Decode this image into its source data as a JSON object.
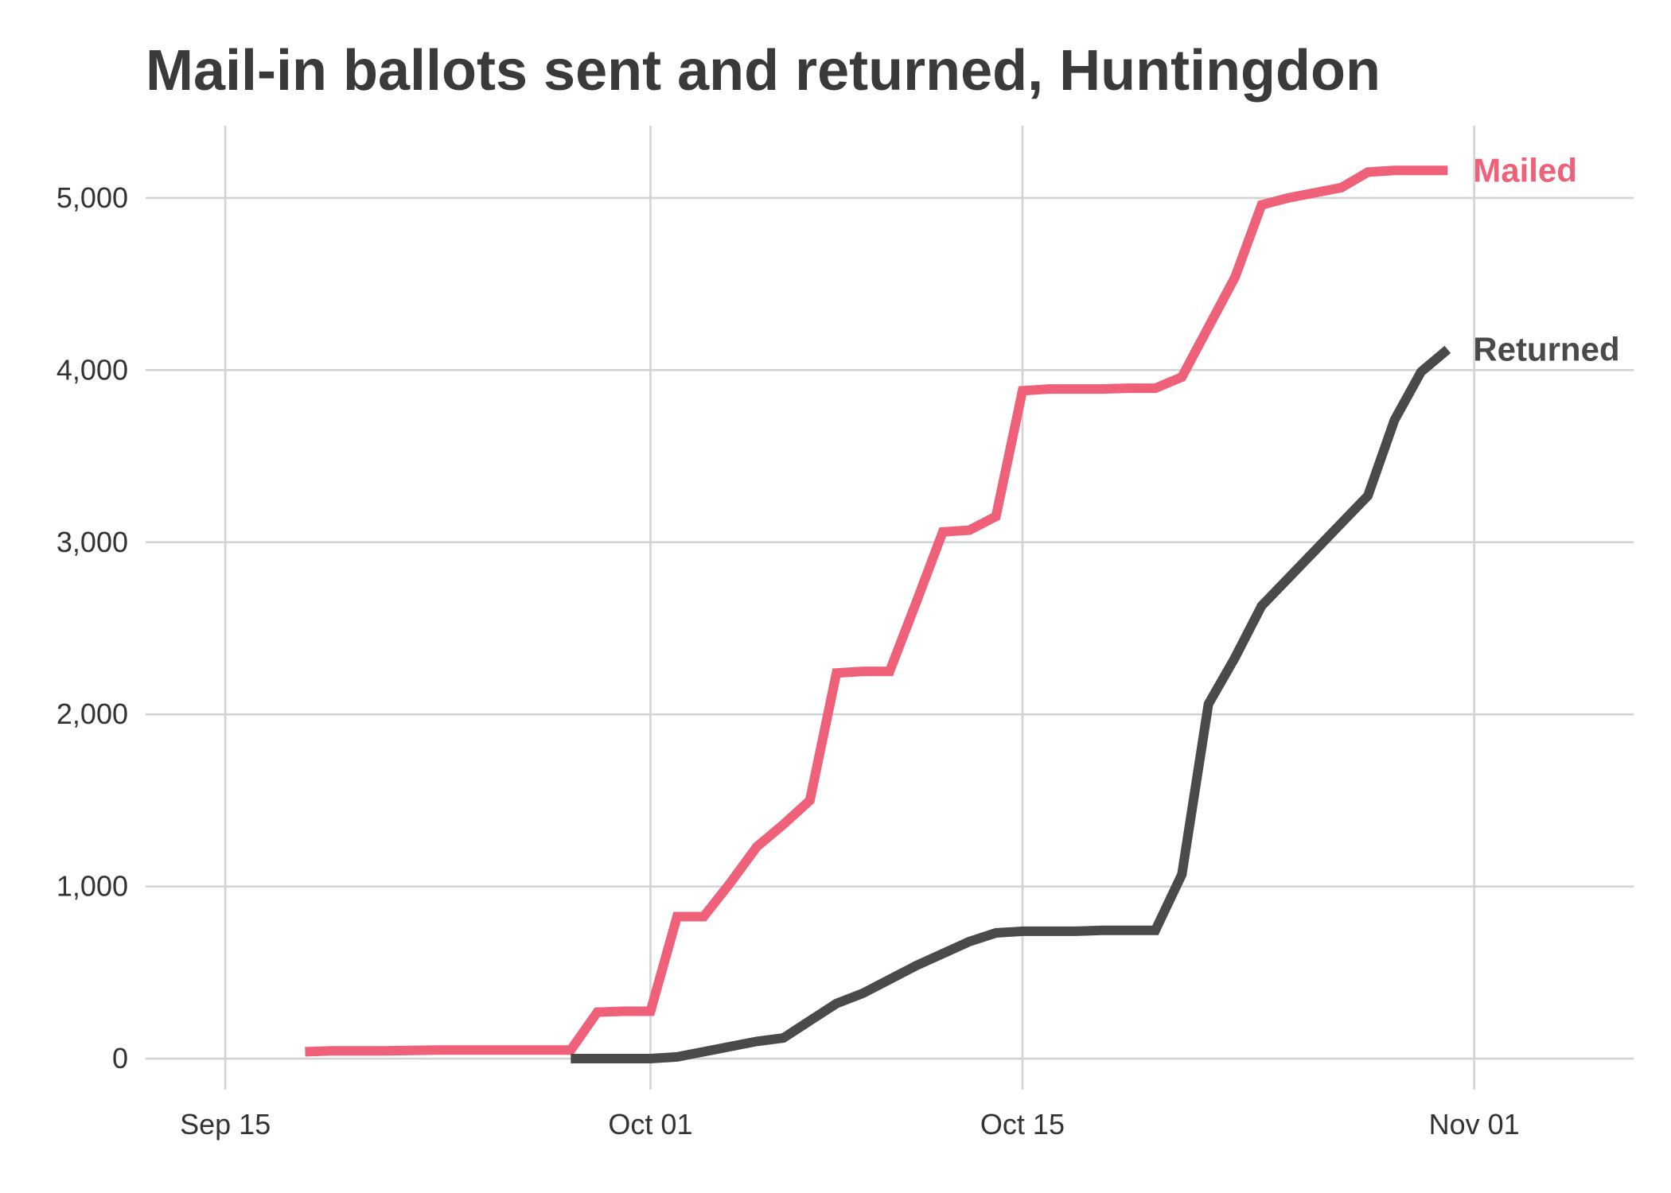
{
  "chart_data": {
    "type": "line",
    "title": "Mail-in ballots sent and returned, Huntingdon",
    "xlabel": "",
    "ylabel": "",
    "x_ticks": [
      "Sep 15",
      "Oct 01",
      "Oct 15",
      "Nov 01"
    ],
    "y_ticks": [
      "0",
      "1,000",
      "2,000",
      "3,000",
      "4,000",
      "5,000"
    ],
    "xlim": [
      "2020-09-12",
      "2020-11-07"
    ],
    "ylim": [
      -180,
      5420
    ],
    "grid": true,
    "legend": "direct labels at line ends",
    "series": [
      {
        "name": "Mailed",
        "color": "#EF6079",
        "label": "Mailed",
        "points": [
          [
            "2020-09-18",
            40
          ],
          [
            "2020-09-19",
            45
          ],
          [
            "2020-09-20",
            45
          ],
          [
            "2020-09-21",
            45
          ],
          [
            "2020-09-22",
            48
          ],
          [
            "2020-09-23",
            50
          ],
          [
            "2020-09-24",
            50
          ],
          [
            "2020-09-25",
            50
          ],
          [
            "2020-09-26",
            50
          ],
          [
            "2020-09-27",
            50
          ],
          [
            "2020-09-28",
            50
          ],
          [
            "2020-09-29",
            270
          ],
          [
            "2020-09-30",
            275
          ],
          [
            "2020-10-01",
            275
          ],
          [
            "2020-10-02",
            825
          ],
          [
            "2020-10-03",
            825
          ],
          [
            "2020-10-04",
            1020
          ],
          [
            "2020-10-05",
            1230
          ],
          [
            "2020-10-06",
            1360
          ],
          [
            "2020-10-07",
            1500
          ],
          [
            "2020-10-08",
            2240
          ],
          [
            "2020-10-09",
            2250
          ],
          [
            "2020-10-10",
            2250
          ],
          [
            "2020-10-11",
            2650
          ],
          [
            "2020-10-12",
            3060
          ],
          [
            "2020-10-13",
            3070
          ],
          [
            "2020-10-14",
            3150
          ],
          [
            "2020-10-15",
            3880
          ],
          [
            "2020-10-16",
            3890
          ],
          [
            "2020-10-17",
            3890
          ],
          [
            "2020-10-18",
            3890
          ],
          [
            "2020-10-19",
            3895
          ],
          [
            "2020-10-20",
            3895
          ],
          [
            "2020-10-21",
            3960
          ],
          [
            "2020-10-22",
            4250
          ],
          [
            "2020-10-23",
            4540
          ],
          [
            "2020-10-24",
            4960
          ],
          [
            "2020-10-25",
            5000
          ],
          [
            "2020-10-26",
            5030
          ],
          [
            "2020-10-27",
            5060
          ],
          [
            "2020-10-28",
            5150
          ],
          [
            "2020-10-29",
            5160
          ],
          [
            "2020-10-30",
            5160
          ],
          [
            "2020-10-31",
            5160
          ]
        ]
      },
      {
        "name": "Returned",
        "color": "#4A4A4A",
        "label": "Returned",
        "points": [
          [
            "2020-09-28",
            0
          ],
          [
            "2020-09-29",
            0
          ],
          [
            "2020-09-30",
            0
          ],
          [
            "2020-10-01",
            0
          ],
          [
            "2020-10-02",
            10
          ],
          [
            "2020-10-03",
            40
          ],
          [
            "2020-10-04",
            70
          ],
          [
            "2020-10-05",
            100
          ],
          [
            "2020-10-06",
            120
          ],
          [
            "2020-10-07",
            220
          ],
          [
            "2020-10-08",
            320
          ],
          [
            "2020-10-09",
            380
          ],
          [
            "2020-10-10",
            460
          ],
          [
            "2020-10-11",
            540
          ],
          [
            "2020-10-12",
            610
          ],
          [
            "2020-10-13",
            680
          ],
          [
            "2020-10-14",
            730
          ],
          [
            "2020-10-15",
            740
          ],
          [
            "2020-10-16",
            740
          ],
          [
            "2020-10-17",
            740
          ],
          [
            "2020-10-18",
            745
          ],
          [
            "2020-10-19",
            745
          ],
          [
            "2020-10-20",
            745
          ],
          [
            "2020-10-21",
            1070
          ],
          [
            "2020-10-22",
            2060
          ],
          [
            "2020-10-23",
            2330
          ],
          [
            "2020-10-24",
            2630
          ],
          [
            "2020-10-25",
            2790
          ],
          [
            "2020-10-26",
            2950
          ],
          [
            "2020-10-27",
            3110
          ],
          [
            "2020-10-28",
            3270
          ],
          [
            "2020-10-29",
            3710
          ],
          [
            "2020-10-30",
            3990
          ],
          [
            "2020-10-31",
            4120
          ]
        ]
      }
    ]
  }
}
